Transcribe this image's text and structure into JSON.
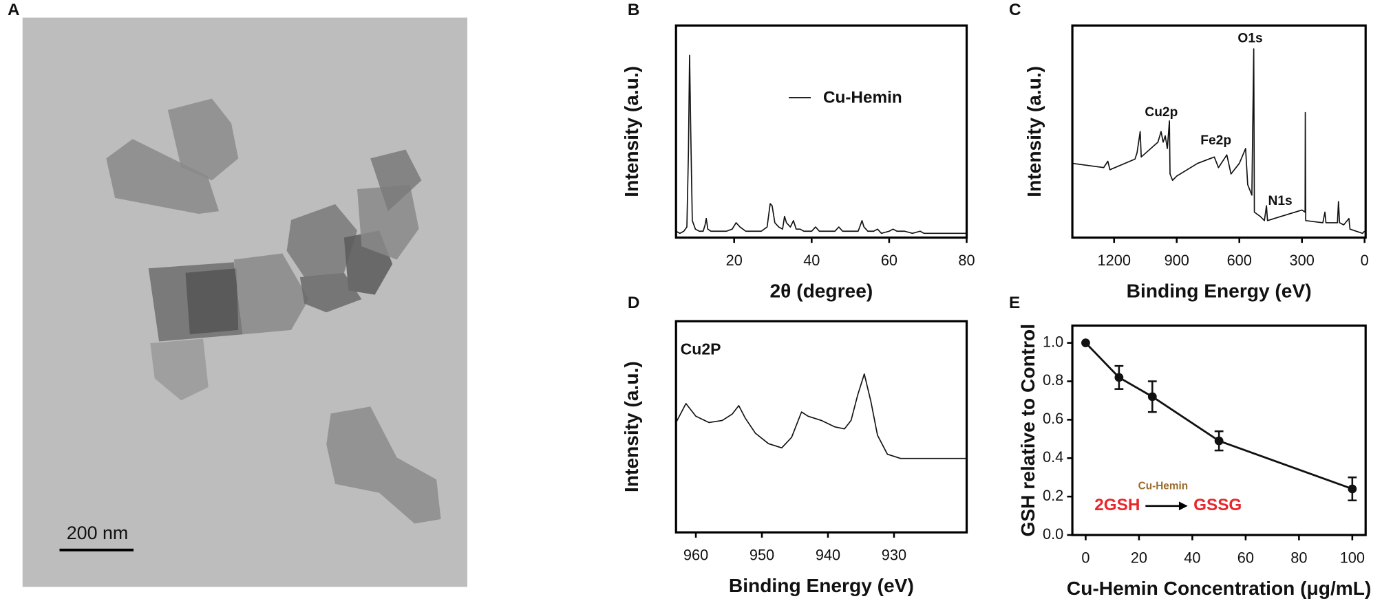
{
  "chart_data": [
    {
      "type": "image",
      "panel": "A",
      "scale_bar": "200 nm"
    },
    {
      "type": "line",
      "panel": "B",
      "xlabel": "2θ (degree)",
      "ylabel": "Intensity (a.u.)",
      "x": [
        5,
        6,
        7,
        7.8,
        8.2,
        8.5,
        8.8,
        9.2,
        10,
        11,
        12,
        12.5,
        12.8,
        13.2,
        14,
        16,
        18,
        19.5,
        20.5,
        21.5,
        23,
        25,
        27,
        28.5,
        29.3,
        29.8,
        30.5,
        31.5,
        32.5,
        33,
        33.5,
        34.5,
        35.3,
        36,
        37,
        38,
        40,
        41,
        42,
        44,
        46,
        47,
        48,
        50,
        52,
        53,
        53.5,
        54.5,
        56,
        57,
        58,
        60,
        61,
        62,
        64,
        66,
        68,
        69,
        70,
        72,
        74,
        76,
        78,
        80
      ],
      "series": [
        {
          "name": "Cu-Hemin",
          "color": "#111111",
          "values": [
            3,
            2,
            3,
            5,
            40,
            86,
            50,
            8,
            4,
            3,
            3,
            6,
            9,
            4,
            3,
            3,
            3,
            4,
            7,
            5,
            3,
            3,
            3,
            5,
            16,
            15,
            7,
            5,
            4,
            10,
            7,
            5,
            8,
            4,
            4,
            3,
            3,
            5,
            3,
            3,
            3,
            5,
            3,
            3,
            3,
            8,
            5,
            3,
            3,
            4,
            2,
            3,
            4,
            3,
            3,
            2,
            3,
            2,
            2,
            2,
            2,
            2,
            2,
            2
          ]
        }
      ],
      "xlim": [
        5,
        80
      ],
      "xticks": [
        20,
        40,
        60,
        80
      ],
      "ylim": [
        0,
        100
      ]
    },
    {
      "type": "line",
      "panel": "C",
      "xlabel": "Binding Energy (eV)",
      "ylabel": "Intensity (a.u.)",
      "annotations": [
        "Cu2p",
        "Fe2p",
        "O1s",
        "N1s"
      ],
      "x": [
        1400,
        1250,
        1230,
        1220,
        1100,
        1090,
        1075,
        1070,
        990,
        975,
        965,
        955,
        945,
        935,
        932,
        920,
        900,
        800,
        720,
        700,
        660,
        640,
        600,
        570,
        560,
        540,
        531,
        528,
        500,
        480,
        470,
        465,
        400,
        300,
        285,
        284,
        282,
        200,
        190,
        185,
        130,
        125,
        120,
        100,
        75,
        70,
        10,
        0
      ],
      "values": [
        35,
        33,
        36,
        32,
        37,
        40,
        50,
        38,
        45,
        50,
        45,
        48,
        42,
        55,
        30,
        27,
        29,
        35,
        38,
        33,
        39,
        30,
        35,
        42,
        25,
        20,
        89,
        12,
        10,
        8,
        15,
        8,
        10,
        13,
        12,
        59,
        8,
        7,
        12,
        7,
        7,
        17,
        7,
        6,
        9,
        4,
        2,
        3
      ],
      "color": "#111111",
      "xlim": [
        1400,
        -5
      ],
      "xticks": [
        1200,
        900,
        600,
        300,
        0
      ],
      "ylim": [
        0,
        100
      ]
    },
    {
      "type": "line",
      "panel": "D",
      "xlabel": "Binding Energy (eV)",
      "ylabel": "Intensity (a.u.)",
      "annotations": [
        "Cu2P"
      ],
      "x": [
        963,
        961.5,
        960,
        958,
        956,
        954.5,
        953.5,
        952.5,
        951,
        949,
        947,
        945.5,
        944,
        943,
        941,
        939,
        937.5,
        936.5,
        935.5,
        934.5,
        933.5,
        932.5,
        931,
        929,
        925,
        919
      ],
      "values": [
        52,
        61,
        55,
        52,
        53,
        56,
        60,
        54,
        47,
        42,
        40,
        45,
        57,
        55,
        53,
        50,
        49,
        53,
        65,
        75,
        62,
        46,
        37,
        35,
        35,
        35
      ],
      "color": "#111111",
      "xlim": [
        963,
        919
      ],
      "xticks": [
        960,
        950,
        940,
        930
      ],
      "ylim": [
        0,
        100
      ]
    },
    {
      "type": "line",
      "panel": "E",
      "xlabel": "Cu-Hemin Concentration (μg/mL)",
      "ylabel": "GSH relative to Control",
      "annotations": [
        "2GSH",
        "Cu-Hemin",
        "GSSG"
      ],
      "markers": true,
      "x": [
        0,
        12.5,
        25,
        50,
        100
      ],
      "values": [
        1.0,
        0.82,
        0.72,
        0.49,
        0.24
      ],
      "errors": [
        null,
        0.06,
        0.08,
        0.05,
        0.06
      ],
      "color": "#111111",
      "xlim": [
        -5,
        105
      ],
      "xticks": [
        0,
        20,
        40,
        60,
        80,
        100
      ],
      "ylim": [
        0,
        1.09
      ],
      "yticks": [
        {
          "value": 0,
          "label": "0.0"
        },
        0.2,
        0.4,
        0.6,
        0.8,
        {
          "value": 1,
          "label": "1.0"
        }
      ]
    }
  ]
}
